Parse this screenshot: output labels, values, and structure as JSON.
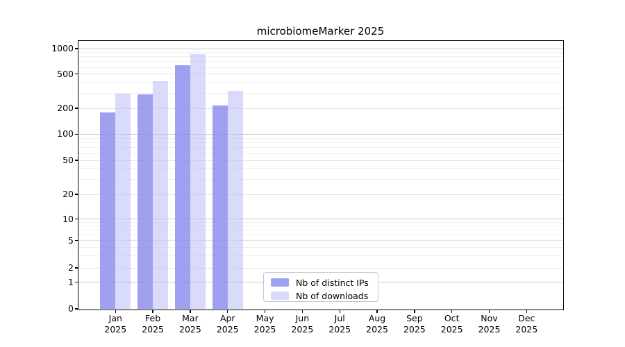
{
  "title": "microbiomeMarker 2025",
  "chart_data": {
    "type": "bar",
    "title": "microbiomeMarker 2025",
    "categories": [
      "Jan",
      "Feb",
      "Mar",
      "Apr",
      "May",
      "Jun",
      "Jul",
      "Aug",
      "Sep",
      "Oct",
      "Nov",
      "Dec"
    ],
    "x_year": "2025",
    "series": [
      {
        "name": "Nb of distinct IPs",
        "color": "#8888ee",
        "opacity": 0.8,
        "values": [
          180,
          290,
          630,
          215,
          null,
          null,
          null,
          null,
          null,
          null,
          null,
          null
        ]
      },
      {
        "name": "Nb of downloads",
        "color": "#bbbbf7",
        "opacity": 0.55,
        "values": [
          297,
          415,
          855,
          320,
          null,
          null,
          null,
          null,
          null,
          null,
          null,
          null
        ]
      }
    ],
    "y_ticks": [
      0,
      1,
      2,
      5,
      10,
      20,
      50,
      100,
      200,
      500,
      1000
    ],
    "ylim": [
      0,
      1000
    ],
    "y_scale": "log above 1, compressed linear segment 0-1",
    "grid": true,
    "xlabel": "",
    "ylabel": "",
    "legend_position": "bottom, left-of-center inside axes"
  }
}
